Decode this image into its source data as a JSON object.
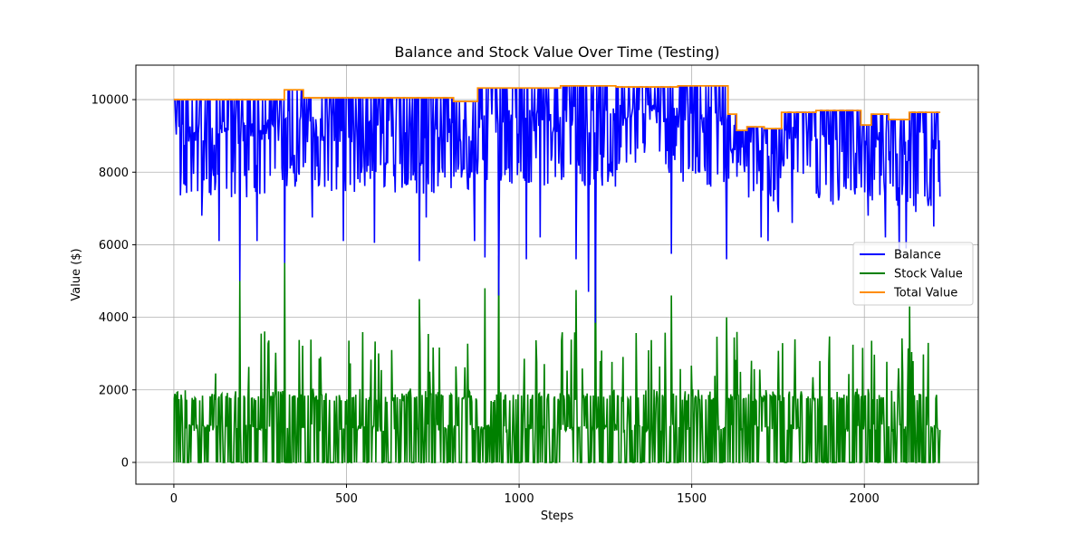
{
  "chart_data": {
    "type": "line",
    "title": "Balance and Stock Value Over Time (Testing)",
    "xlabel": "Steps",
    "ylabel": "Value ($)",
    "xlim": [
      -110,
      2330
    ],
    "ylim": [
      -600,
      10950
    ],
    "x_ticks": [
      0,
      500,
      1000,
      1500,
      2000
    ],
    "y_ticks": [
      0,
      2000,
      4000,
      6000,
      8000,
      10000
    ],
    "grid": true,
    "legend_position": "center-right",
    "series": [
      {
        "name": "Balance",
        "color": "#0000ff",
        "segments": [
          {
            "x0": 0,
            "x1": 320,
            "top": 10000,
            "bottom": 8200,
            "spikes": [
              [
                80,
                6800
              ],
              [
                130,
                6100
              ],
              [
                190,
                5000
              ],
              [
                240,
                6100
              ],
              [
                320,
                5500
              ]
            ]
          },
          {
            "x0": 320,
            "x1": 375,
            "top": 10270,
            "bottom": 8500,
            "spikes": [
              [
                350,
                7600
              ]
            ]
          },
          {
            "x0": 375,
            "x1": 810,
            "top": 10050,
            "bottom": 8300,
            "spikes": [
              [
                400,
                6750
              ],
              [
                490,
                6100
              ],
              [
                580,
                6050
              ],
              [
                710,
                5550
              ],
              [
                730,
                6750
              ]
            ]
          },
          {
            "x0": 810,
            "x1": 880,
            "top": 9950,
            "bottom": 8300,
            "spikes": [
              [
                870,
                6100
              ]
            ]
          },
          {
            "x0": 880,
            "x1": 1120,
            "top": 10320,
            "bottom": 8500,
            "spikes": [
              [
                900,
                5650
              ],
              [
                940,
                4600
              ],
              [
                1020,
                5600
              ],
              [
                1060,
                6200
              ]
            ]
          },
          {
            "x0": 1120,
            "x1": 1280,
            "top": 10380,
            "bottom": 8500,
            "spikes": [
              [
                1165,
                5600
              ],
              [
                1200,
                4700
              ],
              [
                1220,
                3850
              ]
            ]
          },
          {
            "x0": 1280,
            "x1": 1460,
            "top": 10350,
            "bottom": 8800,
            "spikes": [
              [
                1440,
                5750
              ]
            ]
          },
          {
            "x0": 1460,
            "x1": 1605,
            "top": 10380,
            "bottom": 8500,
            "spikes": [
              [
                1555,
                7600
              ],
              [
                1600,
                5600
              ]
            ]
          },
          {
            "x0": 1605,
            "x1": 1630,
            "top": 9600,
            "bottom": 8650,
            "spikes": []
          },
          {
            "x0": 1630,
            "x1": 1660,
            "top": 9150,
            "bottom": 8300,
            "spikes": []
          },
          {
            "x0": 1660,
            "x1": 1710,
            "top": 9250,
            "bottom": 8200,
            "spikes": [
              [
                1700,
                6200
              ],
              [
                1720,
                6100
              ]
            ]
          },
          {
            "x0": 1710,
            "x1": 1760,
            "top": 9200,
            "bottom": 8000,
            "spikes": [
              [
                1750,
                6900
              ]
            ]
          },
          {
            "x0": 1760,
            "x1": 1860,
            "top": 9650,
            "bottom": 8500,
            "spikes": [
              [
                1790,
                6600
              ]
            ]
          },
          {
            "x0": 1860,
            "x1": 1990,
            "top": 9700,
            "bottom": 8000,
            "spikes": [
              [
                1960,
                7500
              ]
            ]
          },
          {
            "x0": 1990,
            "x1": 2020,
            "top": 9300,
            "bottom": 8000,
            "spikes": [
              [
                2010,
                6800
              ]
            ]
          },
          {
            "x0": 2020,
            "x1": 2070,
            "top": 9600,
            "bottom": 8000,
            "spikes": [
              [
                2060,
                6200
              ]
            ]
          },
          {
            "x0": 2070,
            "x1": 2130,
            "top": 9450,
            "bottom": 7800,
            "spikes": [
              [
                2100,
                5800
              ],
              [
                2120,
                5900
              ]
            ]
          },
          {
            "x0": 2130,
            "x1": 2220,
            "top": 9650,
            "bottom": 7800,
            "spikes": [
              [
                2200,
                6500
              ]
            ]
          }
        ]
      },
      {
        "name": "Stock Value",
        "color": "#008000",
        "base_levels": [
          1000,
          1850,
          2600,
          900,
          1800
        ],
        "spikes": [
          [
            190,
            5000
          ],
          [
            320,
            5500
          ],
          [
            710,
            4500
          ],
          [
            900,
            4800
          ],
          [
            940,
            5700
          ],
          [
            1165,
            4750
          ],
          [
            1220,
            6500
          ],
          [
            1440,
            4600
          ],
          [
            1600,
            4000
          ],
          [
            2130,
            4300
          ]
        ]
      },
      {
        "name": "Total Value",
        "color": "#ff8c00",
        "steps": [
          [
            0,
            10000
          ],
          [
            320,
            10270
          ],
          [
            375,
            10050
          ],
          [
            810,
            9950
          ],
          [
            880,
            10320
          ],
          [
            1120,
            10380
          ],
          [
            1280,
            10350
          ],
          [
            1460,
            10380
          ],
          [
            1605,
            9600
          ],
          [
            1630,
            9150
          ],
          [
            1660,
            9250
          ],
          [
            1710,
            9200
          ],
          [
            1760,
            9650
          ],
          [
            1860,
            9700
          ],
          [
            1990,
            9300
          ],
          [
            2020,
            9600
          ],
          [
            2070,
            9450
          ],
          [
            2130,
            9650
          ],
          [
            2220,
            9650
          ]
        ]
      }
    ]
  }
}
